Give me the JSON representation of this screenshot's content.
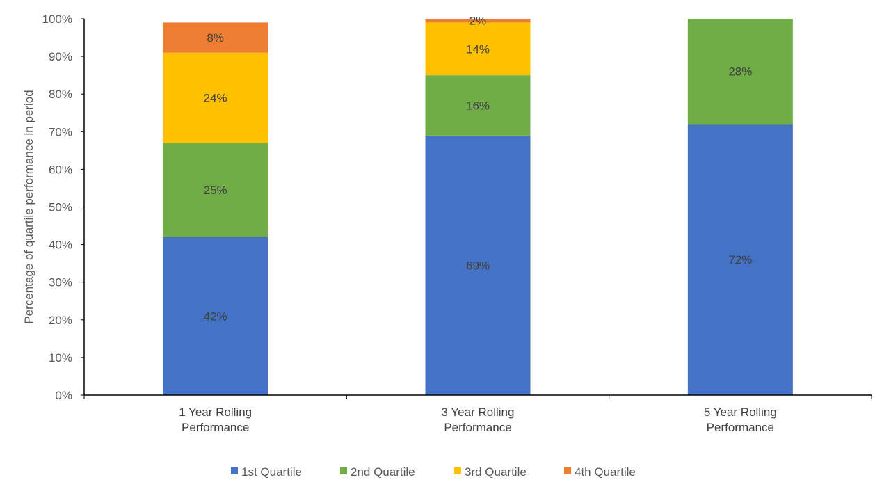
{
  "chart_data": {
    "type": "bar",
    "stacked": true,
    "categories": [
      [
        "1 Year Rolling",
        "Performance"
      ],
      [
        "3 Year Rolling",
        "Performance"
      ],
      [
        "5 Year Rolling",
        "Performance"
      ]
    ],
    "series": [
      {
        "name": "1st Quartile",
        "color": "#4472C4",
        "values": [
          42,
          69,
          72
        ],
        "labels": [
          "42%",
          "69%",
          "72%"
        ]
      },
      {
        "name": "2nd Quartile",
        "color": "#70AD47",
        "values": [
          25,
          16,
          28
        ],
        "labels": [
          "25%",
          "16%",
          "28%"
        ]
      },
      {
        "name": "3rd Quartile",
        "color": "#FFC000",
        "values": [
          24,
          14,
          0
        ],
        "labels": [
          "24%",
          "14%",
          ""
        ]
      },
      {
        "name": "4th Quartile",
        "color": "#ED7D31",
        "values": [
          8,
          2,
          0
        ],
        "labels": [
          "8%",
          "2%",
          ""
        ]
      }
    ],
    "ylabel": "Percentage of quartile performance in period",
    "xlabel": "",
    "ylim": [
      0,
      100
    ],
    "yticks": [
      "0%",
      "10%",
      "20%",
      "30%",
      "40%",
      "50%",
      "60%",
      "70%",
      "80%",
      "90%",
      "100%"
    ],
    "grid": false,
    "legend_position": "bottom"
  }
}
